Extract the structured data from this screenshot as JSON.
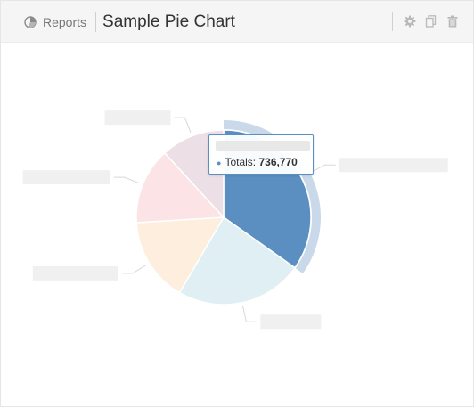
{
  "header": {
    "breadcrumb_label": "Reports",
    "title": "Sample Pie Chart",
    "icons": {
      "breadcrumb": "pie-chart-icon",
      "settings": "gear-icon",
      "copy": "copy-icon",
      "delete": "trash-icon"
    }
  },
  "colors": {
    "accent": "#5b8fc2",
    "slices": [
      "#5b8fc2",
      "#dfeff3",
      "#fdeedd",
      "#fbe3e6",
      "#eddfe6"
    ],
    "halo": "#c9d9ea",
    "connector": "#d8d8d8"
  },
  "tooltip": {
    "series_label": "Totals:",
    "value": "736,770"
  },
  "chart_data": {
    "type": "pie",
    "title": "Sample Pie Chart",
    "series": [
      {
        "name": "Totals",
        "values": [
          736770,
          500000,
          330000,
          300000,
          250000
        ]
      }
    ],
    "highlighted_index": 0,
    "legend": "none"
  }
}
